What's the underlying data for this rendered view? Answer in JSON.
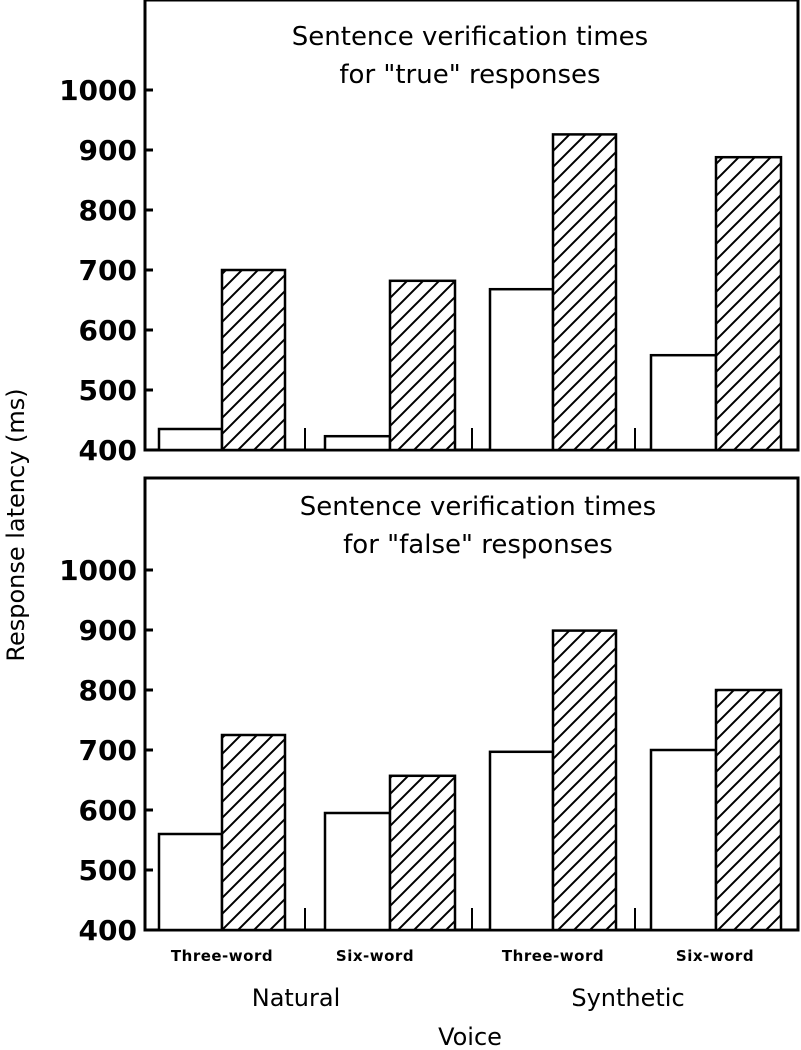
{
  "chart_data": [
    {
      "type": "bar",
      "title": "Sentence verification times\nfor \"true\" responses",
      "ylim": [
        400,
        1000
      ],
      "yticks": [
        400,
        500,
        600,
        700,
        800,
        900,
        1000
      ],
      "categories": [
        "Three-word",
        "Six-word",
        "Three-word",
        "Six-word"
      ],
      "groups": [
        {
          "label": "Natural",
          "categories": [
            0,
            1
          ]
        },
        {
          "label": "Synthetic",
          "categories": [
            2,
            3
          ]
        }
      ],
      "series": [
        {
          "style": "open",
          "values": [
            435,
            423,
            668,
            558
          ]
        },
        {
          "style": "hatched",
          "values": [
            700,
            682,
            926,
            888
          ]
        }
      ]
    },
    {
      "type": "bar",
      "title": "Sentence verification times\nfor \"false\" responses",
      "ylim": [
        400,
        1000
      ],
      "yticks": [
        400,
        500,
        600,
        700,
        800,
        900,
        1000
      ],
      "categories": [
        "Three-word",
        "Six-word",
        "Three-word",
        "Six-word"
      ],
      "groups": [
        {
          "label": "Natural",
          "categories": [
            0,
            1
          ]
        },
        {
          "label": "Synthetic",
          "categories": [
            2,
            3
          ]
        }
      ],
      "series": [
        {
          "style": "open",
          "values": [
            560,
            595,
            697,
            700
          ]
        },
        {
          "style": "hatched",
          "values": [
            725,
            657,
            899,
            800
          ]
        }
      ]
    }
  ],
  "axes": {
    "ylabel": "Response latency (ms)",
    "xlabel": "Voice"
  },
  "labels": {
    "categories": [
      "Three-word",
      "Six-word",
      "Three-word",
      "Six-word"
    ],
    "groups": [
      "Natural",
      "Synthetic"
    ]
  }
}
